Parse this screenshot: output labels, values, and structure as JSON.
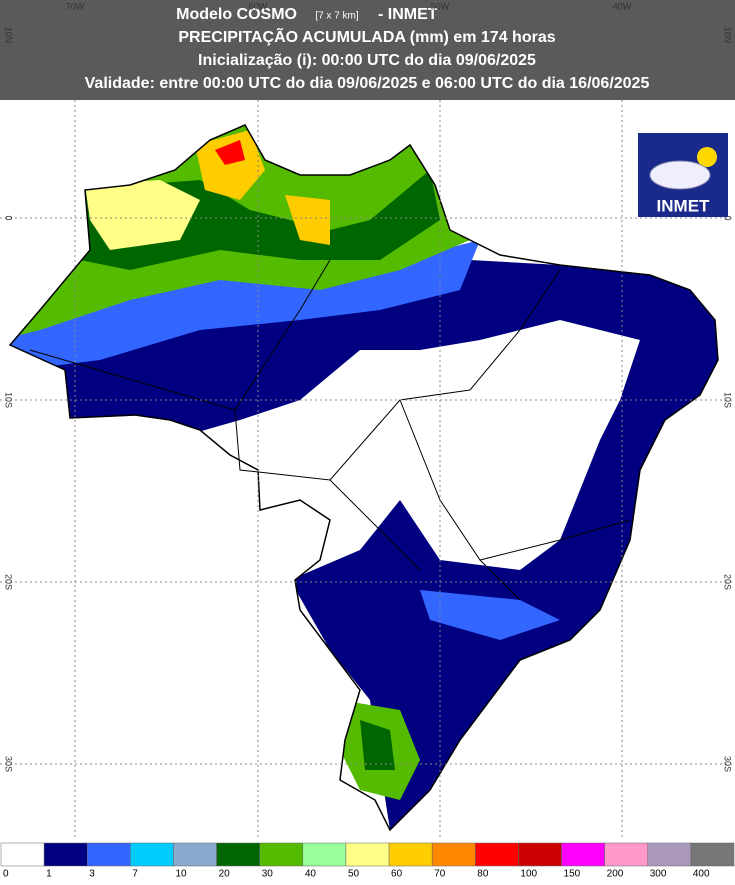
{
  "header": {
    "title_prefix": "Modelo COSMO",
    "resolution": "[7 x 7 km]",
    "title_suffix": "- INMET",
    "line2": "PRECIPITAÇÃO ACUMULADA (mm) em 174 horas",
    "line3": "Inicialização (i): 00:00 UTC do dia 09/06/2025",
    "line4": "Validade: entre 00:00 UTC do dia 09/06/2025 e 06:00 UTC do dia 16/06/2025"
  },
  "map": {
    "longitude_labels": [
      "70W",
      "60W",
      "50W",
      "40W"
    ],
    "latitude_labels": [
      "10N",
      "0",
      "10S",
      "20S",
      "30S"
    ]
  },
  "logo": {
    "text": "INMET"
  },
  "legend": {
    "items": [
      {
        "label": "0",
        "color": "#ffffff"
      },
      {
        "label": "1",
        "color": "#000080"
      },
      {
        "label": "3",
        "color": "#3366ff"
      },
      {
        "label": "7",
        "color": "#00ccff"
      },
      {
        "label": "10",
        "color": "#88aacc"
      },
      {
        "label": "20",
        "color": "#006600"
      },
      {
        "label": "30",
        "color": "#55bb00"
      },
      {
        "label": "40",
        "color": "#99ff99"
      },
      {
        "label": "50",
        "color": "#ffff88"
      },
      {
        "label": "60",
        "color": "#ffcc00"
      },
      {
        "label": "70",
        "color": "#ff8800"
      },
      {
        "label": "80",
        "color": "#ff0000"
      },
      {
        "label": "100",
        "color": "#cc0000"
      },
      {
        "label": "150",
        "color": "#ff00ff"
      },
      {
        "label": "200",
        "color": "#ff99cc"
      },
      {
        "label": "300",
        "color": "#aa99bb"
      },
      {
        "label": "400",
        "color": "#777777"
      }
    ]
  }
}
